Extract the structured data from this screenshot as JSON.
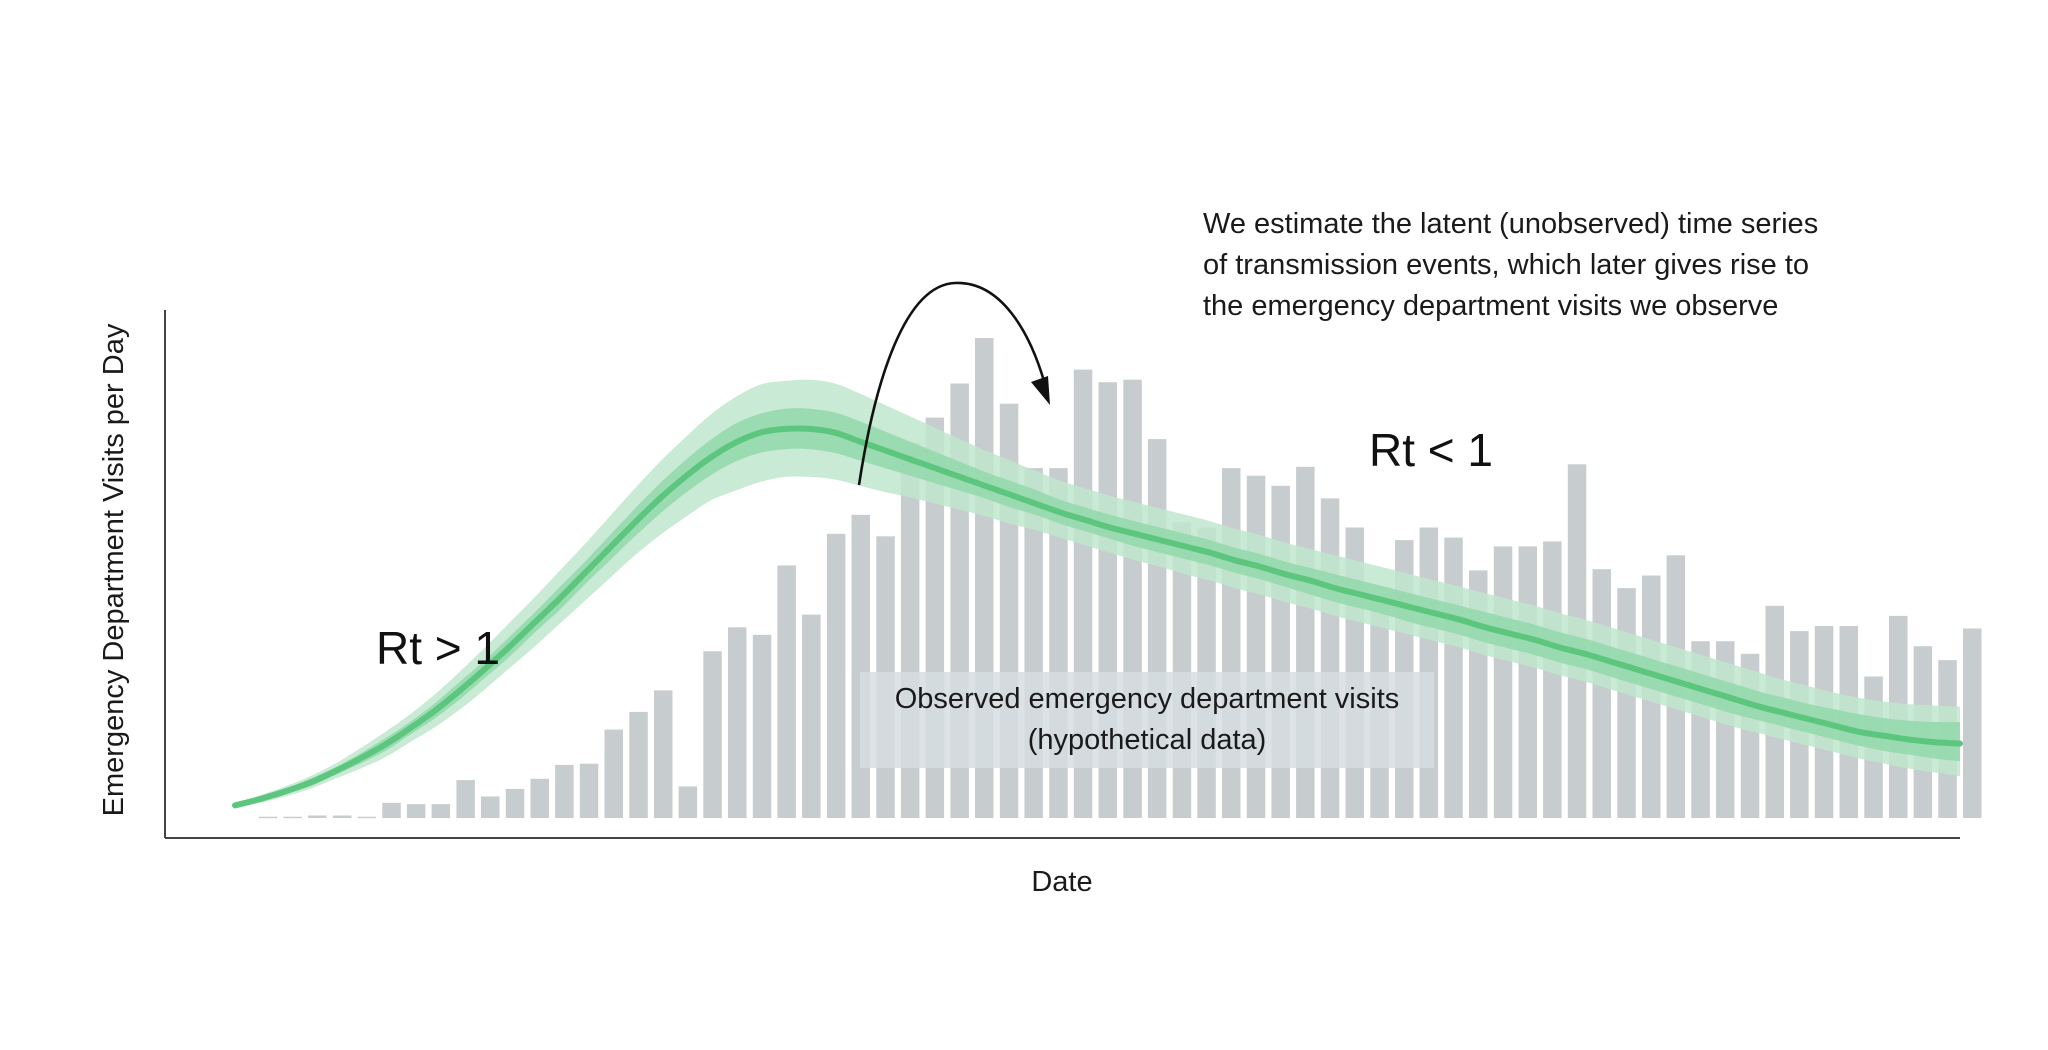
{
  "chart_data": {
    "type": "bar",
    "xlabel": "Date",
    "ylabel": "Emergency Department Visits per Day",
    "ylim": [
      0,
      380
    ],
    "grid": false,
    "colors": {
      "bar": "#c7cdcf",
      "band_outer": "#bfe6cc",
      "band_inner": "#93d8aa",
      "median_line": "#5cc67f",
      "axis": "#333333",
      "arrow": "#111111"
    },
    "series": [
      {
        "values": [
          1,
          1,
          2,
          2,
          1,
          12,
          11,
          11,
          30,
          17,
          23,
          31,
          42,
          43,
          70,
          84,
          101,
          25,
          132,
          151,
          145,
          200,
          161,
          225,
          240,
          223,
          297,
          317,
          344,
          380,
          328,
          277,
          277,
          355,
          345,
          347,
          300,
          234,
          230,
          277,
          271,
          263,
          278,
          253,
          230,
          175,
          220,
          230,
          222,
          196,
          215,
          215,
          219,
          280,
          197,
          182,
          192,
          208,
          140,
          140,
          130,
          168,
          148,
          152,
          152,
          112,
          160,
          136,
          125,
          150
        ]
      },
      {
        "type": "line",
        "values": [
          10,
          15,
          21,
          28,
          37,
          47,
          58,
          71,
          85,
          101,
          118,
          136,
          155,
          174,
          194,
          214,
          234,
          253,
          270,
          285,
          297,
          305,
          308,
          308,
          305,
          298,
          291,
          284,
          277,
          270,
          263,
          256,
          249,
          242,
          236,
          230,
          225,
          220,
          215,
          210,
          204,
          199,
          193,
          188,
          182,
          177,
          172,
          167,
          162,
          157,
          151,
          146,
          141,
          135,
          130,
          124,
          118,
          112,
          106,
          100,
          94,
          88,
          83,
          78,
          73,
          68,
          65,
          62,
          60,
          59
        ],
        "band_inner_low": [
          9,
          13,
          19,
          25,
          34,
          43,
          53,
          66,
          79,
          94,
          111,
          128,
          147,
          165,
          185,
          204,
          223,
          241,
          257,
          271,
          282,
          289,
          292,
          292,
          289,
          283,
          277,
          271,
          265,
          259,
          253,
          246,
          240,
          233,
          227,
          221,
          215,
          210,
          205,
          200,
          194,
          189,
          183,
          177,
          171,
          166,
          161,
          155,
          150,
          145,
          139,
          134,
          129,
          123,
          118,
          112,
          106,
          100,
          94,
          88,
          82,
          77,
          72,
          67,
          62,
          57,
          53,
          50,
          47,
          45
        ],
        "band_inner_high": [
          11,
          17,
          23,
          31,
          40,
          51,
          63,
          76,
          91,
          108,
          125,
          144,
          163,
          183,
          203,
          224,
          245,
          265,
          283,
          299,
          312,
          320,
          324,
          324,
          321,
          314,
          306,
          298,
          290,
          282,
          274,
          267,
          260,
          252,
          246,
          240,
          235,
          230,
          225,
          220,
          214,
          209,
          203,
          198,
          193,
          188,
          183,
          178,
          173,
          168,
          163,
          158,
          153,
          147,
          142,
          136,
          130,
          124,
          118,
          112,
          106,
          100,
          95,
          90,
          86,
          82,
          79,
          77,
          76,
          76
        ],
        "band_outer_low": [
          8,
          12,
          17,
          23,
          31,
          39,
          48,
          60,
          72,
          86,
          102,
          119,
          136,
          154,
          172,
          190,
          208,
          224,
          238,
          251,
          259,
          266,
          270,
          270,
          268,
          263,
          258,
          254,
          249,
          244,
          239,
          233,
          228,
          222,
          216,
          210,
          204,
          199,
          193,
          188,
          182,
          177,
          171,
          166,
          160,
          155,
          150,
          145,
          140,
          135,
          129,
          124,
          119,
          113,
          108,
          102,
          96,
          90,
          84,
          78,
          72,
          67,
          62,
          57,
          52,
          47,
          43,
          39,
          36,
          33
        ],
        "band_outer_high": [
          12,
          18,
          25,
          33,
          43,
          55,
          68,
          82,
          98,
          116,
          135,
          155,
          175,
          196,
          217,
          239,
          261,
          282,
          301,
          319,
          333,
          343,
          346,
          347,
          344,
          336,
          327,
          318,
          309,
          300,
          291,
          283,
          275,
          267,
          261,
          255,
          250,
          245,
          240,
          235,
          229,
          224,
          218,
          213,
          208,
          203,
          198,
          193,
          188,
          183,
          178,
          173,
          168,
          162,
          157,
          151,
          145,
          139,
          133,
          127,
          121,
          115,
          109,
          104,
          99,
          95,
          92,
          90,
          89,
          88
        ]
      }
    ],
    "annotations": {
      "rt_gt": "Rt > 1",
      "rt_lt": "Rt < 1",
      "note_lines": [
        "We estimate the latent (unobserved) time series",
        "of transmission events, which later gives rise to",
        "the emergency department visits we observe"
      ],
      "box_lines": [
        "Observed emergency department visits",
        "(hypothetical data)"
      ]
    }
  }
}
